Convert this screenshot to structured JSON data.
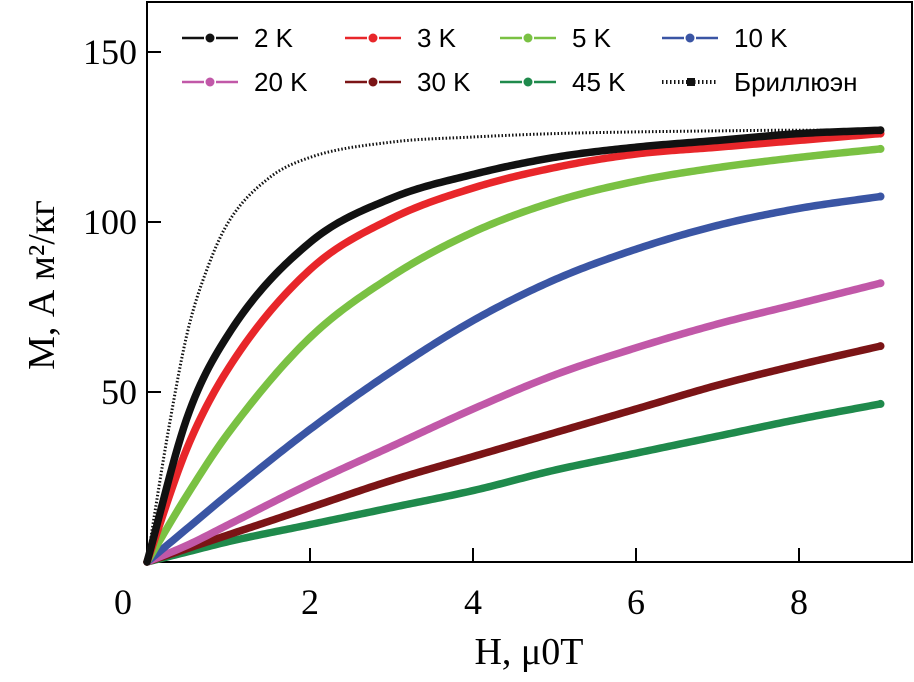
{
  "chart_data": {
    "type": "line",
    "title": "",
    "xlabel": "H, μ0T",
    "ylabel": "M, А м²/кг",
    "xlim": [
      0,
      9.6
    ],
    "ylim": [
      0,
      162
    ],
    "xticks": [
      0,
      2,
      4,
      6,
      8
    ],
    "yticks": [
      50,
      100,
      150
    ],
    "xtick_labels": [
      "0",
      "2",
      "4",
      "6",
      "8"
    ],
    "ytick_labels": [
      "50",
      "100",
      "150"
    ],
    "grid": false,
    "legend_position": "top",
    "saturation": 127,
    "series": [
      {
        "name": "2 K",
        "color": "#111111",
        "x": [
          0,
          0.5,
          1,
          2,
          3,
          4,
          5,
          6,
          7,
          8,
          9
        ],
        "y": [
          0,
          43,
          67,
          94,
          107,
          114,
          119,
          122,
          124,
          126,
          127
        ]
      },
      {
        "name": "3 K",
        "color": "#e8262a",
        "x": [
          0,
          0.5,
          1,
          2,
          3,
          4,
          5,
          6,
          7,
          8,
          9
        ],
        "y": [
          0,
          34,
          57,
          86,
          101,
          110,
          116,
          120,
          122,
          124,
          126
        ]
      },
      {
        "name": "5 K",
        "color": "#7ac143",
        "x": [
          0,
          0.5,
          1,
          2,
          3,
          4,
          5,
          6,
          7,
          8,
          9
        ],
        "y": [
          0,
          20,
          38,
          66,
          84,
          97,
          106,
          112,
          116,
          119,
          121.5
        ]
      },
      {
        "name": "10 K",
        "color": "#3a55a4",
        "x": [
          0,
          0.5,
          1,
          2,
          3,
          4,
          5,
          6,
          7,
          8,
          9
        ],
        "y": [
          0,
          10,
          20,
          39,
          56,
          71,
          83,
          92,
          99,
          104,
          107.5
        ]
      },
      {
        "name": "20 K",
        "color": "#c158a8",
        "x": [
          0,
          0.5,
          1,
          2,
          3,
          4,
          5,
          6,
          7,
          8,
          9
        ],
        "y": [
          0,
          5,
          11,
          23,
          34,
          45,
          55,
          63,
          70,
          76,
          82
        ]
      },
      {
        "name": "30 K",
        "color": "#7b1416",
        "x": [
          0,
          0.5,
          1,
          2,
          3,
          4,
          5,
          6,
          7,
          8,
          9
        ],
        "y": [
          0,
          4,
          8,
          16,
          24,
          31,
          38,
          45,
          52,
          58,
          63.5
        ]
      },
      {
        "name": "45 K",
        "color": "#1f8a4c",
        "x": [
          0,
          0.5,
          1,
          2,
          3,
          4,
          5,
          6,
          7,
          8,
          9
        ],
        "y": [
          0,
          3,
          6,
          11,
          16,
          21,
          27,
          32,
          37,
          42,
          46.5
        ]
      },
      {
        "name": "Бриллюэн",
        "color": "#111111",
        "style": "dotted",
        "x": [
          0,
          0.25,
          0.5,
          0.75,
          1,
          1.5,
          2,
          3,
          4,
          5,
          6,
          7,
          8,
          9
        ],
        "y": [
          0,
          37,
          68,
          87,
          100,
          113,
          119,
          123.5,
          125,
          126,
          126.5,
          126.8,
          127,
          127
        ]
      }
    ]
  }
}
